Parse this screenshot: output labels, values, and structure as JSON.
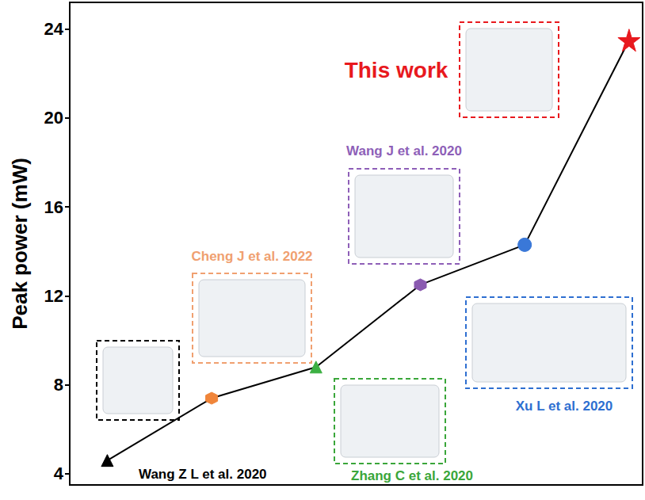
{
  "chart_data": {
    "type": "line",
    "y_label": "Peak power (mW)",
    "x": [
      1,
      2,
      3,
      4,
      5,
      6
    ],
    "values": [
      4.6,
      7.4,
      8.8,
      12.5,
      14.3,
      23.5
    ],
    "color": "#000000",
    "colors": [
      "#000000",
      "#f0853a",
      "#3cb043",
      "#8a5ab0",
      "#3a78d8",
      "#e8191e"
    ],
    "annotations": [
      {
        "text": "Wang Z L et al. 2020",
        "color": "#000000"
      },
      {
        "text": "Cheng J et al. 2022",
        "color": "#f0a070"
      },
      {
        "text": "Zhang C et al. 2020",
        "color": "#3aa63a"
      },
      {
        "text": "Wang J et al. 2020",
        "color": "#8e5fb8"
      },
      {
        "text": "Xu L et al. 2020",
        "color": "#2e6fd1"
      },
      {
        "text": "This work",
        "color": "#e8191e"
      }
    ],
    "xlim": [
      0.64,
      6.13
    ],
    "ylim": [
      3.5,
      25.2
    ],
    "yticks": [
      4,
      8,
      12,
      16,
      20,
      24
    ],
    "grid": false,
    "tick_labels": "y"
  }
}
